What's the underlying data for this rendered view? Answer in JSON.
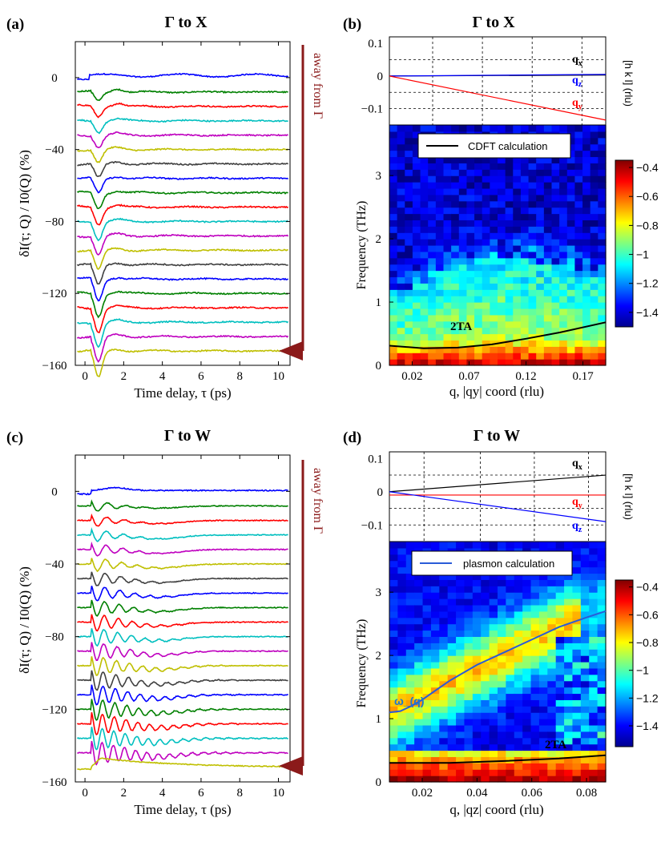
{
  "chart_data": [
    {
      "panel": "(a)",
      "title": "Γ to X",
      "type": "line",
      "xlabel": "Time delay, τ (ps)",
      "ylabel": "δI(τ; Q) / I0(Q) (%)",
      "xlim": [
        -0.5,
        10.6
      ],
      "ylim": [
        -160,
        20
      ],
      "xticks": [
        "0",
        "2",
        "4",
        "6",
        "8",
        "10"
      ],
      "yticks": [
        "0",
        "-40",
        "-80",
        "-120",
        "-160"
      ],
      "annotation": "away from Γ",
      "trace_offsets": [
        0,
        -8,
        -16,
        -24,
        -32,
        -40,
        -48,
        -56,
        -64,
        -72,
        -80,
        -88,
        -96,
        -104,
        -112,
        -120,
        -128,
        -136,
        -144,
        -152
      ],
      "trace_colors": [
        "#0000ff",
        "#008000",
        "#ff0000",
        "#00bfbf",
        "#bf00bf",
        "#bfbf00",
        "#404040"
      ],
      "feature": "dip near τ≈0.7 ps deepening with offset, flat afterward"
    },
    {
      "panel": "(b)",
      "title": "Γ to X",
      "type": "heatmap",
      "xlabel": "q, |qy| coord (rlu)",
      "ylabel": "Frequency (THz)",
      "xticks": [
        "0.02",
        "0.07",
        "0.12",
        "0.17"
      ],
      "yticks": [
        "0",
        "1",
        "2",
        "3"
      ],
      "xlim": [
        0.0,
        0.19
      ],
      "ylim": [
        0,
        3.8
      ],
      "colorbar": {
        "range": [
          -1.5,
          -0.35
        ],
        "ticks": [
          "-0.4",
          "-0.6",
          "-0.8",
          "-1",
          "-1.2",
          "-1.4"
        ]
      },
      "legend": "CDFT calculation",
      "curve_label": "2TA",
      "top_inset": {
        "ylabel": "[h k l] (rlu)",
        "yticks": [
          "0.1",
          "0",
          "-0.1"
        ],
        "lines": [
          {
            "name": "qx",
            "color": "#000000",
            "start": 0,
            "end": 0.003
          },
          {
            "name": "qz",
            "color": "#0000ff",
            "start": 0,
            "end": 0.005
          },
          {
            "name": "qy",
            "color": "#ff0000",
            "start": 0,
            "end": -0.135
          }
        ]
      },
      "curve": {
        "x": [
          0.0,
          0.03,
          0.06,
          0.09,
          0.12,
          0.15,
          0.19
        ],
        "y": [
          0.31,
          0.27,
          0.28,
          0.33,
          0.42,
          0.52,
          0.68
        ]
      }
    },
    {
      "panel": "(c)",
      "title": "Γ to W",
      "type": "line",
      "xlabel": "Time delay, τ (ps)",
      "ylabel": "δI(τ; Q) / I0(Q) (%)",
      "xlim": [
        -0.5,
        10.6
      ],
      "ylim": [
        -160,
        20
      ],
      "xticks": [
        "0",
        "2",
        "4",
        "6",
        "8",
        "10"
      ],
      "yticks": [
        "0",
        "-40",
        "-80",
        "-120",
        "-160"
      ],
      "annotation": "away from Γ",
      "trace_offsets": [
        0,
        -8,
        -16,
        -24,
        -32,
        -40,
        -48,
        -56,
        -64,
        -72,
        -80,
        -88,
        -96,
        -104,
        -112,
        -120,
        -128,
        -136,
        -144,
        -152
      ],
      "trace_colors": [
        "#0000ff",
        "#008000",
        "#ff0000",
        "#00bfbf",
        "#bf00bf",
        "#bfbf00",
        "#404040"
      ],
      "feature": "damped oscillations after τ≈0.5 ps, slow recovery"
    },
    {
      "panel": "(d)",
      "title": "Γ to W",
      "type": "heatmap",
      "xlabel": "q, |qz| coord (rlu)",
      "ylabel": "Frequency (THz)",
      "xticks": [
        "0.02",
        "0.04",
        "0.06",
        "0.08"
      ],
      "yticks": [
        "0",
        "1",
        "2",
        "3"
      ],
      "xlim": [
        0.008,
        0.087
      ],
      "ylim": [
        0,
        3.8
      ],
      "colorbar": {
        "range": [
          -1.55,
          -0.35
        ],
        "ticks": [
          "-0.4",
          "-0.6",
          "-0.8",
          "-1",
          "-1.2",
          "-1.4"
        ]
      },
      "legend": "plasmon calculation",
      "curve_label": "2TA",
      "plasmon_label": "ω_(q)",
      "top_inset": {
        "ylabel": "[h k l] (rlu)",
        "yticks": [
          "0.1",
          "0",
          "-0.1"
        ],
        "lines": [
          {
            "name": "qx",
            "color": "#000000",
            "start": 0,
            "end": 0.05
          },
          {
            "name": "qy",
            "color": "#ff0000",
            "start": -0.01,
            "end": -0.01
          },
          {
            "name": "qz",
            "color": "#0000ff",
            "start": 0,
            "end": -0.09
          }
        ]
      },
      "curve": {
        "x": [
          0.008,
          0.03,
          0.05,
          0.07,
          0.087
        ],
        "y": [
          0.3,
          0.3,
          0.33,
          0.37,
          0.42
        ]
      },
      "plasmon": {
        "x": [
          0.008,
          0.012,
          0.016,
          0.02,
          0.025,
          0.03,
          0.034,
          0.04,
          0.05,
          0.06,
          0.07,
          0.08,
          0.087
        ],
        "y": [
          1.1,
          1.12,
          1.2,
          1.3,
          1.45,
          1.6,
          1.7,
          1.85,
          2.05,
          2.25,
          2.45,
          2.6,
          2.7
        ]
      }
    }
  ]
}
